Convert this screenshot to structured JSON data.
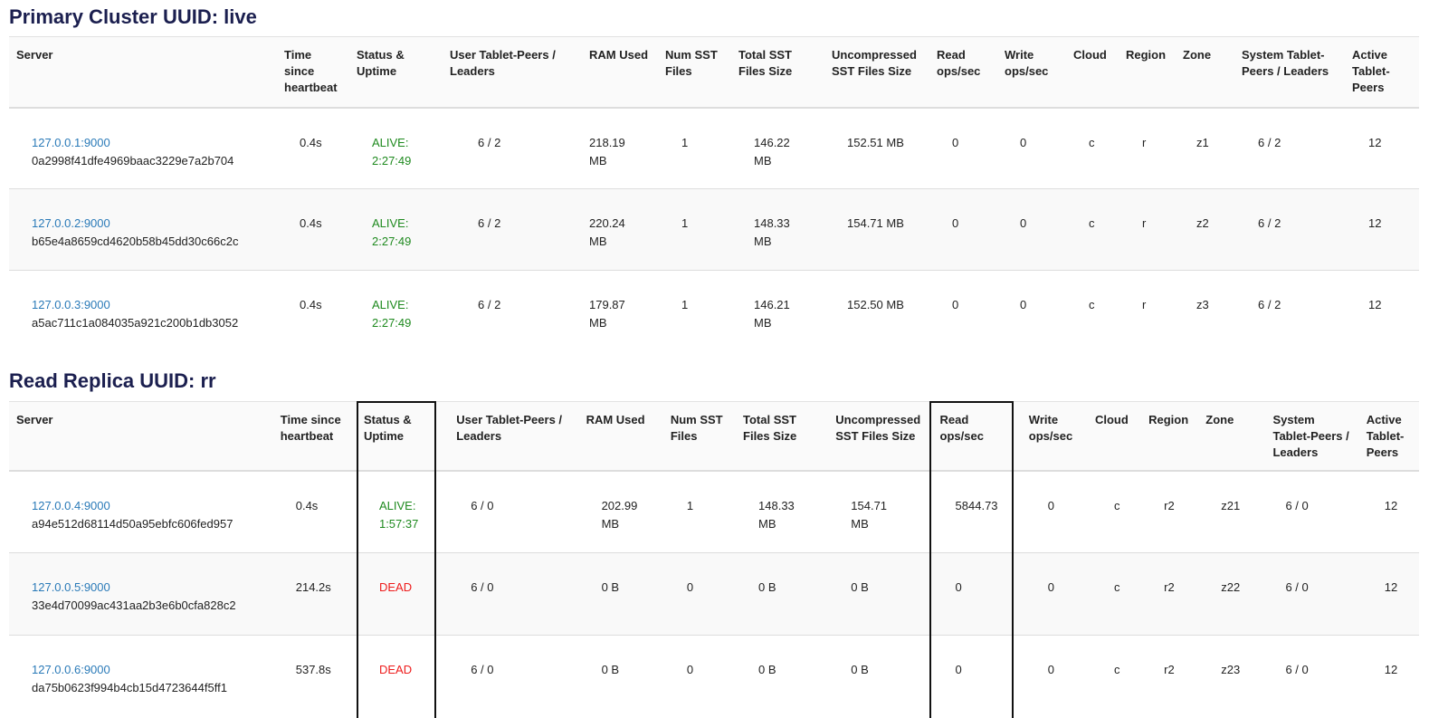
{
  "clusters": [
    {
      "title": "Primary Cluster UUID: live",
      "headers": [
        "Server",
        "Time since heartbeat",
        "Status & Uptime",
        "User Tablet-Peers / Leaders",
        "RAM Used",
        "Num SST Files",
        "Total SST Files Size",
        "Uncompressed SST Files Size",
        "Read ops/sec",
        "Write ops/sec",
        "Cloud",
        "Region",
        "Zone",
        "System Tablet-Peers / Leaders",
        "Active Tablet-Peers"
      ],
      "rows": [
        {
          "address": "127.0.0.1:9000",
          "uuid": "0a2998f41dfe4969baac3229e7a2b704",
          "heartbeat": "0.4s",
          "status": "ALIVE: 2:27:49",
          "status_kind": "alive",
          "user_peers": "6 / 2",
          "ram": "218.19 MB",
          "num_sst": "1",
          "total_sst": "146.22 MB",
          "uncompressed_sst": "152.51 MB",
          "read_ops": "0",
          "write_ops": "0",
          "cloud": "c",
          "region": "r",
          "zone": "z1",
          "system_peers": "6 / 2",
          "active_peers": "12"
        },
        {
          "address": "127.0.0.2:9000",
          "uuid": "b65e4a8659cd4620b58b45dd30c66c2c",
          "heartbeat": "0.4s",
          "status": "ALIVE: 2:27:49",
          "status_kind": "alive",
          "user_peers": "6 / 2",
          "ram": "220.24 MB",
          "num_sst": "1",
          "total_sst": "148.33 MB",
          "uncompressed_sst": "154.71 MB",
          "read_ops": "0",
          "write_ops": "0",
          "cloud": "c",
          "region": "r",
          "zone": "z2",
          "system_peers": "6 / 2",
          "active_peers": "12"
        },
        {
          "address": "127.0.0.3:9000",
          "uuid": "a5ac711c1a084035a921c200b1db3052",
          "heartbeat": "0.4s",
          "status": "ALIVE: 2:27:49",
          "status_kind": "alive",
          "user_peers": "6 / 2",
          "ram": "179.87 MB",
          "num_sst": "1",
          "total_sst": "146.21 MB",
          "uncompressed_sst": "152.50 MB",
          "read_ops": "0",
          "write_ops": "0",
          "cloud": "c",
          "region": "r",
          "zone": "z3",
          "system_peers": "6 / 2",
          "active_peers": "12"
        }
      ]
    },
    {
      "title": "Read Replica UUID: rr",
      "headers": [
        "Server",
        "Time since heartbeat",
        "Status & Uptime",
        "User Tablet-Peers / Leaders",
        "RAM Used",
        "Num SST Files",
        "Total SST Files Size",
        "Uncompressed SST Files Size",
        "Read ops/sec",
        "Write ops/sec",
        "Cloud",
        "Region",
        "Zone",
        "System Tablet-Peers / Leaders",
        "Active Tablet-Peers"
      ],
      "rows": [
        {
          "address": "127.0.0.4:9000",
          "uuid": "a94e512d68114d50a95ebfc606fed957",
          "heartbeat": "0.4s",
          "status": "ALIVE: 1:57:37",
          "status_kind": "alive",
          "user_peers": "6 / 0",
          "ram": "202.99 MB",
          "num_sst": "1",
          "total_sst": "148.33 MB",
          "uncompressed_sst": "154.71 MB",
          "read_ops": "5844.73",
          "write_ops": "0",
          "cloud": "c",
          "region": "r2",
          "zone": "z21",
          "system_peers": "6 / 0",
          "active_peers": "12"
        },
        {
          "address": "127.0.0.5:9000",
          "uuid": "33e4d70099ac431aa2b3e6b0cfa828c2",
          "heartbeat": "214.2s",
          "status": "DEAD",
          "status_kind": "dead",
          "user_peers": "6 / 0",
          "ram": "0 B",
          "num_sst": "0",
          "total_sst": "0 B",
          "uncompressed_sst": "0 B",
          "read_ops": "0",
          "write_ops": "0",
          "cloud": "c",
          "region": "r2",
          "zone": "z22",
          "system_peers": "6 / 0",
          "active_peers": "12"
        },
        {
          "address": "127.0.0.6:9000",
          "uuid": "da75b0623f994b4cb15d4723644f5ff1",
          "heartbeat": "537.8s",
          "status": "DEAD",
          "status_kind": "dead",
          "user_peers": "6 / 0",
          "ram": "0 B",
          "num_sst": "0",
          "total_sst": "0 B",
          "uncompressed_sst": "0 B",
          "read_ops": "0",
          "write_ops": "0",
          "cloud": "c",
          "region": "r2",
          "zone": "z23",
          "system_peers": "6 / 0",
          "active_peers": "12"
        }
      ]
    }
  ],
  "highlighted_columns": [
    "Status & Uptime",
    "Read ops/sec"
  ],
  "colors": {
    "title": "#1b1f4f",
    "link": "#2a7ab8",
    "alive": "#1f8a1f",
    "dead": "#ee1c1c"
  }
}
